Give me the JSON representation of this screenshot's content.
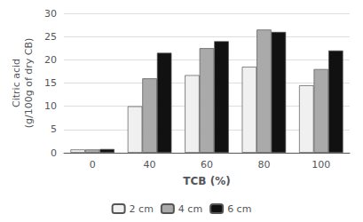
{
  "chart_data": {
    "type": "bar",
    "categories": [
      "0",
      "40",
      "60",
      "80",
      "100"
    ],
    "series": [
      {
        "name": "2 cm",
        "color": "#f0f0f0",
        "values": [
          0.7,
          10.0,
          16.7,
          18.5,
          14.5
        ]
      },
      {
        "name": "4 cm",
        "color": "#aaaaaa",
        "values": [
          0.7,
          16.0,
          22.5,
          26.5,
          18.0
        ]
      },
      {
        "name": "6 cm",
        "color": "#111111",
        "values": [
          0.8,
          21.5,
          24.0,
          26.0,
          22.0
        ]
      }
    ],
    "xlabel": "TCB (%)",
    "ylabel": "Citric acid\n(g/100g of dry CB)",
    "ylim": [
      0,
      30
    ],
    "yticks": [
      0,
      5,
      10,
      15,
      20,
      25,
      30
    ],
    "grid": true,
    "legend": "bottom"
  }
}
